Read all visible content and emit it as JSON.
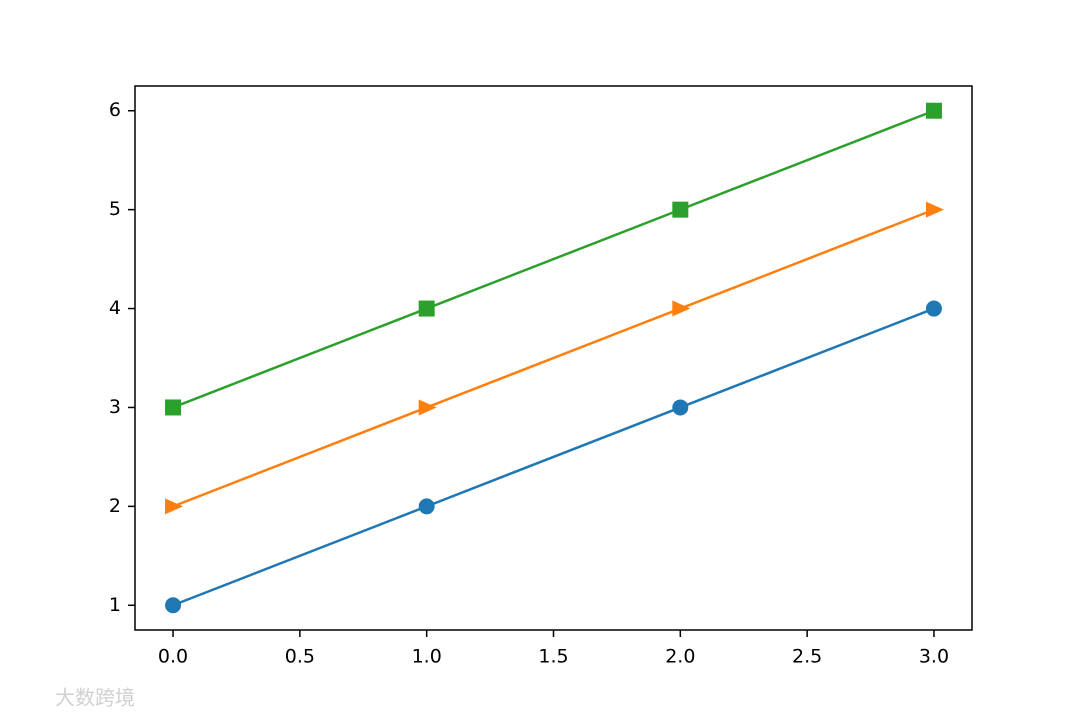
{
  "chart_data": {
    "type": "line",
    "x": [
      0,
      1,
      2,
      3
    ],
    "series": [
      {
        "color": "#1f77b4",
        "marker": "circle",
        "values": [
          1,
          2,
          3,
          4
        ]
      },
      {
        "color": "#ff7f0e",
        "marker": "triangle-right",
        "values": [
          2,
          3,
          4,
          5
        ]
      },
      {
        "color": "#2ca02c",
        "marker": "square",
        "values": [
          3,
          4,
          5,
          6
        ]
      }
    ],
    "xlim": [
      -0.15,
      3.15
    ],
    "xticks": [
      {
        "value": 0,
        "label": "0.0"
      },
      0.5,
      {
        "value": 1,
        "label": "1.0"
      },
      1.5,
      {
        "value": 2,
        "label": "2.0"
      },
      2.5,
      {
        "value": 3,
        "label": "3.0"
      }
    ],
    "ylim": [
      0.75,
      6.25
    ],
    "yticks": [
      1,
      2,
      3,
      4,
      5,
      6
    ],
    "grid": false,
    "watermark": "大数跨境"
  }
}
